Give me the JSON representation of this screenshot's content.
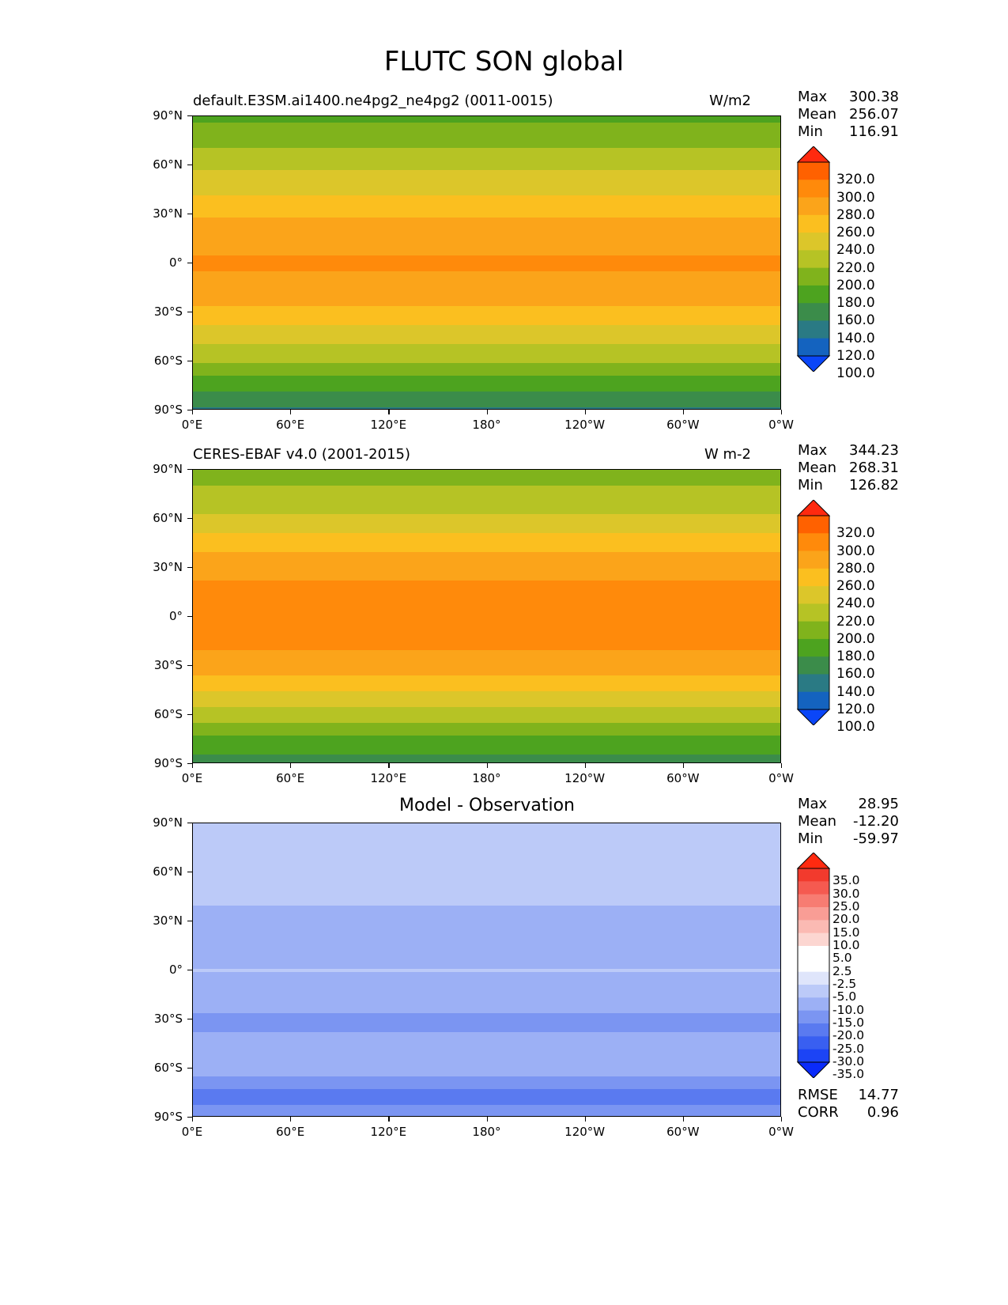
{
  "title": "FLUTC SON global",
  "lat_ticks": [
    "90°N",
    "60°N",
    "30°N",
    "0°",
    "30°S",
    "60°S",
    "90°S"
  ],
  "lon_ticks": [
    "0°E",
    "60°E",
    "120°E",
    "180°",
    "120°W",
    "60°W",
    "0°W"
  ],
  "panels": [
    {
      "left_title": "default.E3SM.ai1400.ne4pg2_ne4pg2 (0011-0015)",
      "center_title": "",
      "units": "W/m2",
      "stats": [
        {
          "name": "Max",
          "value": "300.38"
        },
        {
          "name": "Mean",
          "value": "256.07"
        },
        {
          "name": "Min",
          "value": "116.91"
        }
      ],
      "extra_stats": [],
      "colorbar": {
        "labels": [
          "320.0",
          "300.0",
          "280.0",
          "260.0",
          "240.0",
          "220.0",
          "200.0",
          "180.0",
          "160.0",
          "140.0",
          "120.0",
          "100.0"
        ],
        "colors": [
          "#ff2a0f",
          "#ff6100",
          "#ff8a0b",
          "#fba41a",
          "#fbbf1f",
          "#dcc62a",
          "#b6c325",
          "#80b31c",
          "#4da31f",
          "#3b8c4a",
          "#2a7a84",
          "#1463bf",
          "#0a46f8"
        ]
      }
    },
    {
      "left_title": "CERES-EBAF v4.0 (2001-2015)",
      "center_title": "",
      "units": "W m-2",
      "stats": [
        {
          "name": "Max",
          "value": "344.23"
        },
        {
          "name": "Mean",
          "value": "268.31"
        },
        {
          "name": "Min",
          "value": "126.82"
        }
      ],
      "extra_stats": [],
      "colorbar": {
        "labels": [
          "320.0",
          "300.0",
          "280.0",
          "260.0",
          "240.0",
          "220.0",
          "200.0",
          "180.0",
          "160.0",
          "140.0",
          "120.0",
          "100.0"
        ],
        "colors": [
          "#ff2a0f",
          "#ff6100",
          "#ff8a0b",
          "#fba41a",
          "#fbbf1f",
          "#dcc62a",
          "#b6c325",
          "#80b31c",
          "#4da31f",
          "#3b8c4a",
          "#2a7a84",
          "#1463bf",
          "#0a46f8"
        ]
      }
    },
    {
      "left_title": "",
      "center_title": "Model - Observation",
      "units": "",
      "stats": [
        {
          "name": "Max",
          "value": "28.95"
        },
        {
          "name": "Mean",
          "value": "-12.20"
        },
        {
          "name": "Min",
          "value": "-59.97"
        }
      ],
      "extra_stats": [
        {
          "name": "RMSE",
          "value": "14.77"
        },
        {
          "name": "CORR",
          "value": "0.96"
        }
      ],
      "colorbar": {
        "labels": [
          "35.0",
          "30.0",
          "25.0",
          "20.0",
          "15.0",
          "10.0",
          "5.0",
          "2.5",
          "-2.5",
          "-5.0",
          "-10.0",
          "-15.0",
          "-20.0",
          "-25.0",
          "-30.0",
          "-35.0"
        ],
        "colors": [
          "#ff2a10",
          "#f23a2d",
          "#f55a50",
          "#f77c72",
          "#f99d95",
          "#fbbab3",
          "#fcd6d1",
          "#ffffff",
          "#ffffff",
          "#dfe5fb",
          "#bccaf8",
          "#9cb0f5",
          "#7b95f2",
          "#5a7af0",
          "#395ff1",
          "#1c44f5",
          "#0a2bfa"
        ]
      }
    }
  ],
  "chart_data": [
    {
      "type": "heatmap",
      "title": "default.E3SM.ai1400.ne4pg2_ne4pg2 (0011-0015)",
      "units": "W/m2",
      "x_ticks": [
        "0°E",
        "60°E",
        "120°E",
        "180°",
        "120°W",
        "60°W",
        "0°W"
      ],
      "y_ticks": [
        "90°N",
        "60°N",
        "30°N",
        "0°",
        "30°S",
        "60°S",
        "90°S"
      ],
      "xlim": [
        0,
        360
      ],
      "ylim": [
        -90,
        90
      ],
      "levels": [
        100,
        120,
        140,
        160,
        180,
        200,
        220,
        240,
        260,
        280,
        300,
        320
      ],
      "zonal_profile": {
        "lat": [
          90,
          75,
          60,
          45,
          30,
          15,
          0,
          -15,
          -30,
          -45,
          -60,
          -75,
          -90
        ],
        "value": [
          175,
          195,
          215,
          235,
          258,
          275,
          282,
          275,
          255,
          228,
          200,
          165,
          135
        ]
      },
      "max": 300.38,
      "mean": 256.07,
      "min": 116.91
    },
    {
      "type": "heatmap",
      "title": "CERES-EBAF v4.0 (2001-2015)",
      "units": "W m-2",
      "x_ticks": [
        "0°E",
        "60°E",
        "120°E",
        "180°",
        "120°W",
        "60°W",
        "0°W"
      ],
      "y_ticks": [
        "90°N",
        "60°N",
        "30°N",
        "0°",
        "30°S",
        "60°S",
        "90°S"
      ],
      "xlim": [
        0,
        360
      ],
      "ylim": [
        -90,
        90
      ],
      "levels": [
        100,
        120,
        140,
        160,
        180,
        200,
        220,
        240,
        260,
        280,
        300,
        320
      ],
      "zonal_profile": {
        "lat": [
          90,
          75,
          60,
          45,
          30,
          15,
          0,
          -15,
          -30,
          -45,
          -60,
          -75,
          -90
        ],
        "value": [
          190,
          205,
          225,
          250,
          275,
          285,
          288,
          285,
          270,
          242,
          212,
          175,
          150
        ]
      },
      "max": 344.23,
      "mean": 268.31,
      "min": 126.82
    },
    {
      "type": "heatmap",
      "title": "Model - Observation",
      "x_ticks": [
        "0°E",
        "60°E",
        "120°E",
        "180°",
        "120°W",
        "60°W",
        "0°W"
      ],
      "y_ticks": [
        "90°N",
        "60°N",
        "30°N",
        "0°",
        "30°S",
        "60°S",
        "90°S"
      ],
      "xlim": [
        0,
        360
      ],
      "ylim": [
        -90,
        90
      ],
      "levels": [
        -35,
        -30,
        -25,
        -20,
        -15,
        -10,
        -5,
        -2.5,
        2.5,
        5,
        10,
        15,
        20,
        25,
        30,
        35
      ],
      "zonal_profile": {
        "lat": [
          90,
          75,
          60,
          45,
          30,
          15,
          0,
          -15,
          -30,
          -45,
          -60,
          -75,
          -90
        ],
        "value": [
          -10,
          -8,
          -6,
          -8,
          -14,
          -12,
          -10,
          -12,
          -16,
          -14,
          -12,
          -22,
          -18
        ]
      },
      "max": 28.95,
      "mean": -12.2,
      "min": -59.97,
      "rmse": 14.77,
      "corr": 0.96
    }
  ]
}
